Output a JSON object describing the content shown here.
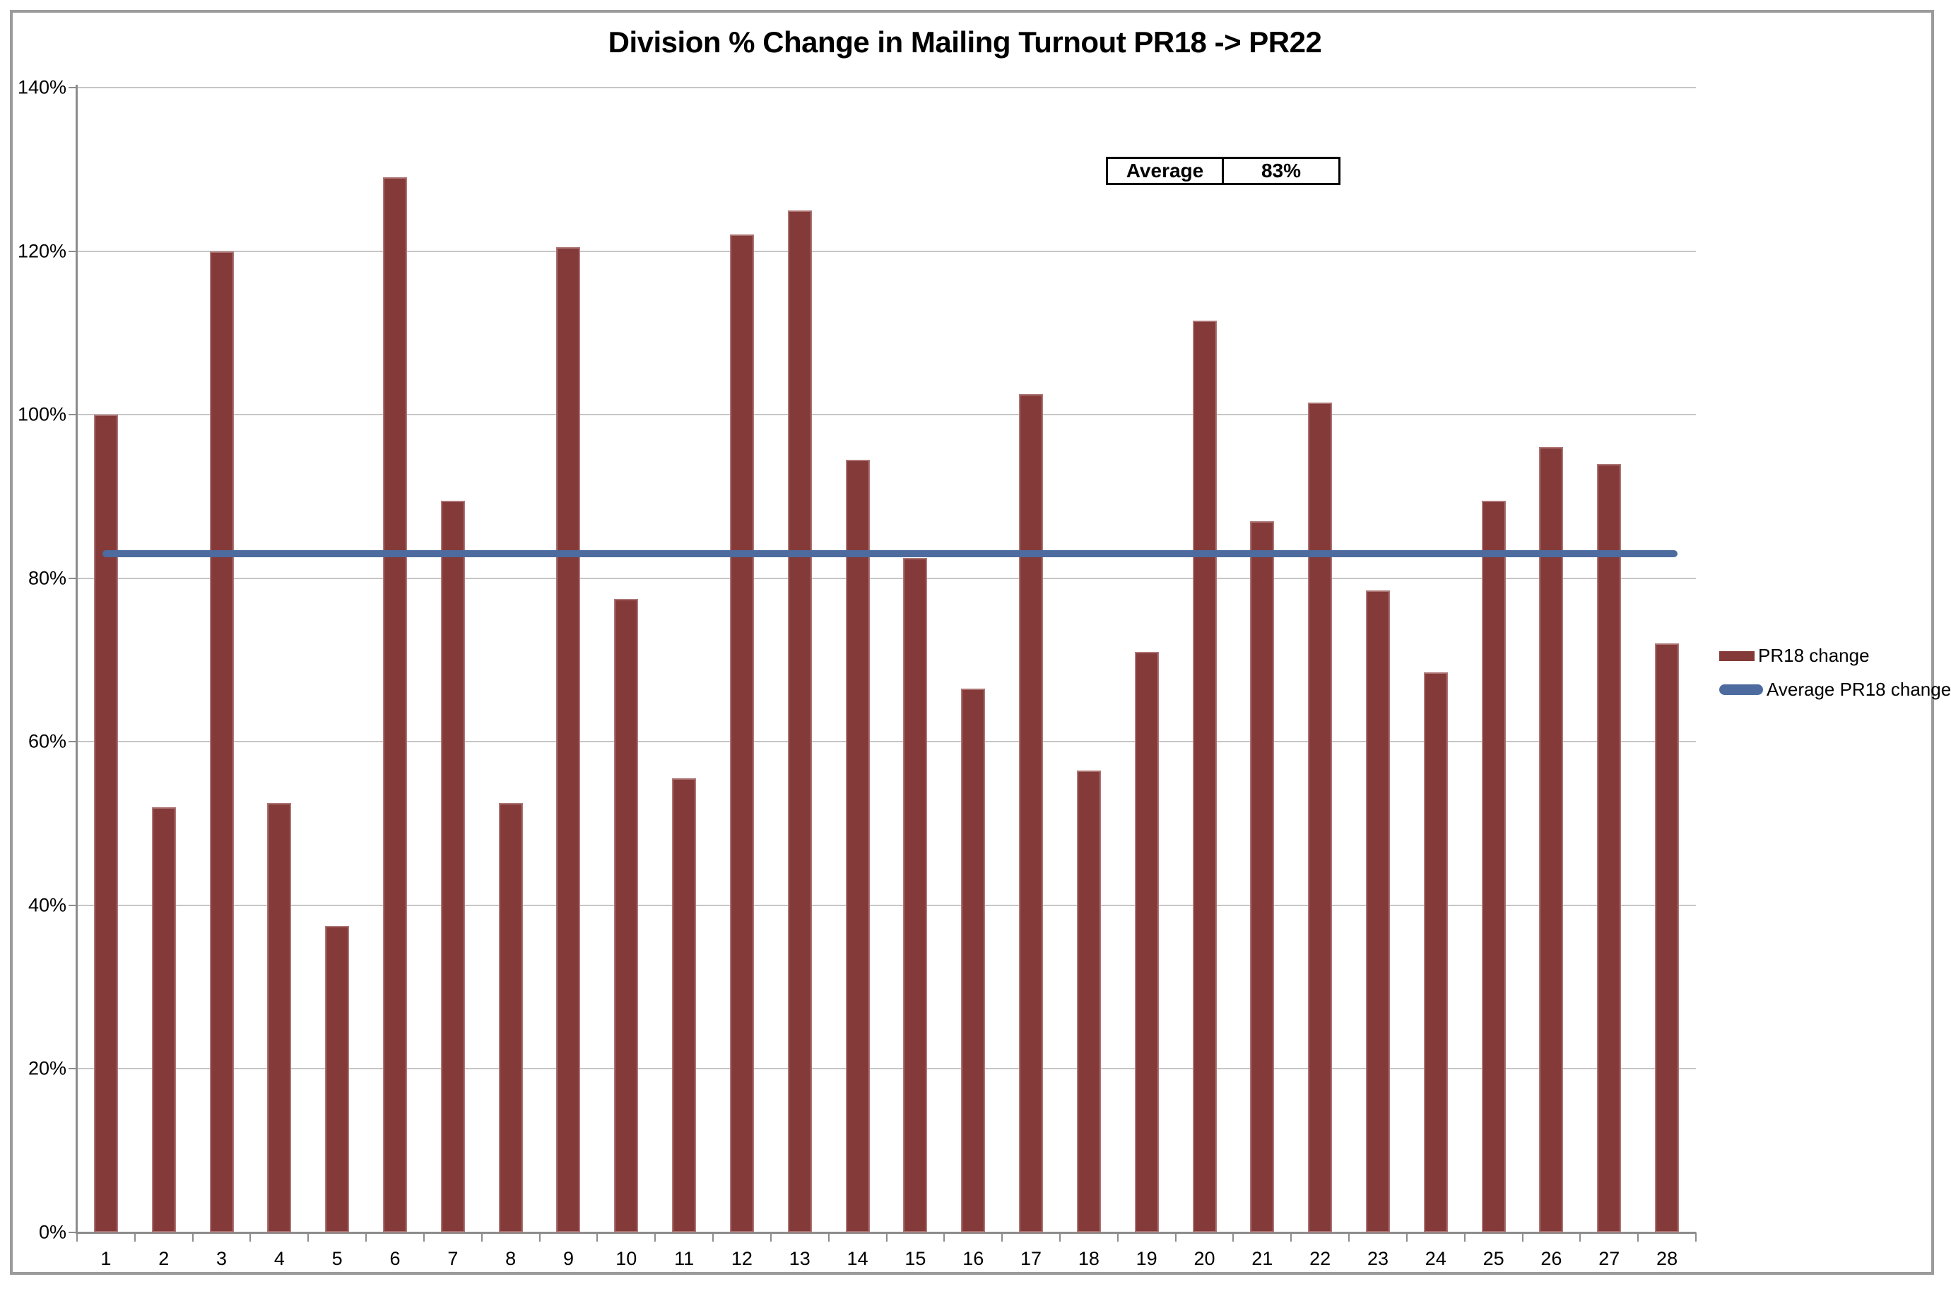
{
  "title": "Division % Change in Mailing Turnout PR18 -> PR22",
  "chart_data": {
    "type": "bar",
    "title": "Division % Change in Mailing Turnout PR18 -> PR22",
    "categories": [
      "1",
      "2",
      "3",
      "4",
      "5",
      "6",
      "7",
      "8",
      "9",
      "10",
      "11",
      "12",
      "13",
      "14",
      "15",
      "16",
      "17",
      "18",
      "19",
      "20",
      "21",
      "22",
      "23",
      "24",
      "25",
      "26",
      "27",
      "28"
    ],
    "series": [
      {
        "name": "PR18 change",
        "values": [
          100,
          52,
          120,
          52.5,
          37.5,
          129,
          89.5,
          52.5,
          120.5,
          77.5,
          55.5,
          122,
          125,
          94.5,
          82.5,
          66.5,
          102.5,
          56.5,
          71,
          111.5,
          87,
          101.5,
          78.5,
          68.5,
          89.5,
          96,
          94,
          72
        ]
      }
    ],
    "average_line": {
      "name": "Average PR18 change",
      "value": 83
    },
    "xlabel": "",
    "ylabel": "",
    "ylim": [
      0,
      140
    ],
    "ytick_step": 20,
    "ytick_labels": [
      "0%",
      "20%",
      "40%",
      "60%",
      "80%",
      "100%",
      "120%",
      "140%"
    ],
    "grid": true,
    "legend_position": "right"
  },
  "annotation_table": {
    "label": "Average",
    "value": "83%"
  },
  "legend": {
    "items": [
      {
        "label": "PR18 change",
        "shape": "bar"
      },
      {
        "label": "Average PR18 change",
        "shape": "line"
      }
    ]
  },
  "colors": {
    "bar": "#833a38",
    "line": "#4d6b9e",
    "gridline": "#c6c6c6",
    "axis": "#8c8c8c",
    "frame_border": "#9b9b9b",
    "text": "#000000"
  }
}
